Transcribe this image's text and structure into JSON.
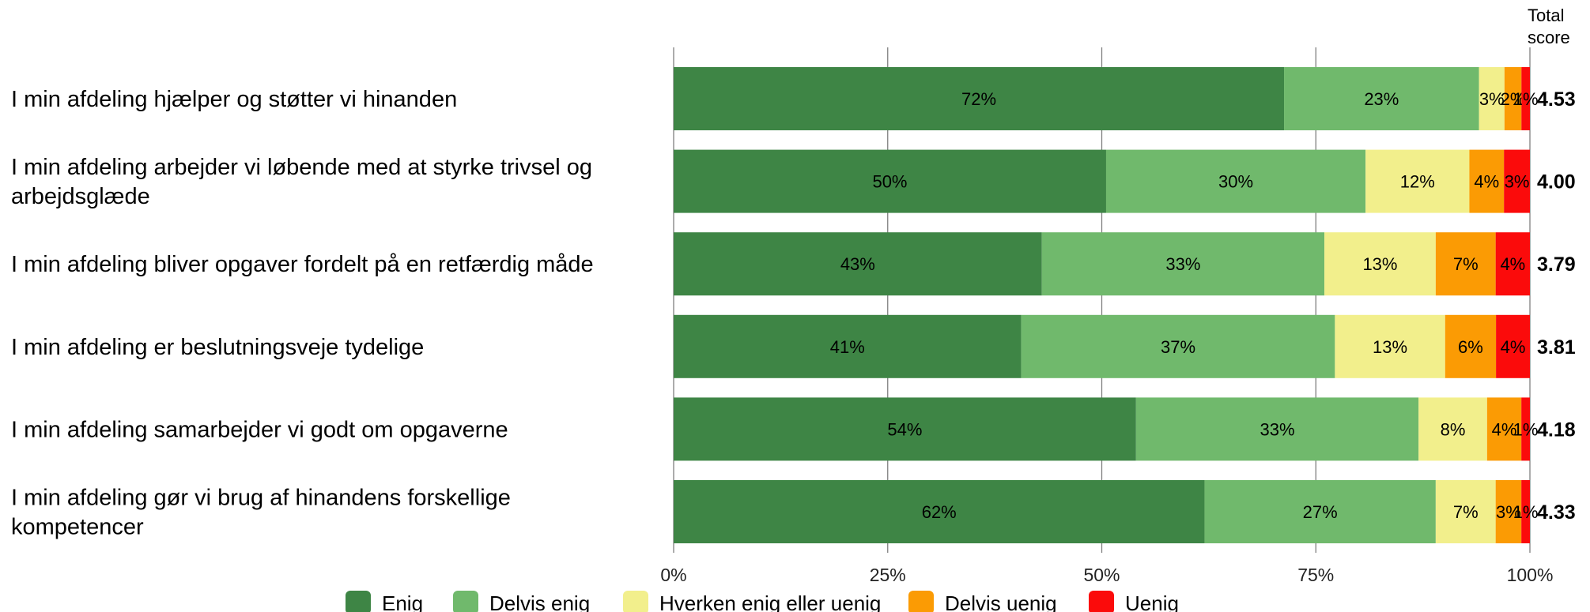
{
  "chart_data": {
    "type": "bar",
    "orientation": "horizontal",
    "stacked": true,
    "categories": [
      [
        "I min afdeling hjælper og støtter vi hinanden"
      ],
      [
        "I min afdeling arbejder vi løbende med at styrke trivsel og",
        "arbejdsglæde"
      ],
      [
        "I min afdeling bliver opgaver fordelt på en retfærdig måde"
      ],
      [
        "I min afdeling er beslutningsveje tydelige"
      ],
      [
        "I min afdeling samarbejder vi godt om opgaverne"
      ],
      [
        "I min afdeling gør vi brug af hinandens forskellige",
        "kompetencer"
      ]
    ],
    "series": [
      {
        "name": "Enig",
        "color": "#3e8545",
        "values": [
          72,
          50,
          43,
          41,
          54,
          62
        ],
        "labels": [
          "72%",
          "50%",
          "43%",
          "41%",
          "54%",
          "62%"
        ]
      },
      {
        "name": "Delvis enig",
        "color": "#70b96c",
        "values": [
          23,
          30,
          33,
          37,
          33,
          27
        ],
        "labels": [
          "23%",
          "30%",
          "33%",
          "37%",
          "33%",
          "27%"
        ]
      },
      {
        "name": "Hverken enig eller uenig",
        "color": "#f2ef8c",
        "values": [
          3,
          12,
          13,
          13,
          8,
          7
        ],
        "labels": [
          "3%",
          "12%",
          "13%",
          "13%",
          "8%",
          "7%"
        ]
      },
      {
        "name": "Delvis uenig",
        "color": "#fb9b04",
        "values": [
          2,
          4,
          7,
          6,
          4,
          3
        ],
        "labels": [
          "2%",
          "4%",
          "7%",
          "6%",
          "4%",
          "3%"
        ]
      },
      {
        "name": "Uenig",
        "color": "#fb0b0b",
        "values": [
          1,
          3,
          4,
          4,
          1,
          1
        ],
        "labels": [
          "1%",
          "3%",
          "4%",
          "4%",
          "1%",
          "1%"
        ]
      }
    ],
    "xlim": [
      0,
      100
    ],
    "x_ticks": [
      "0%",
      "25%",
      "50%",
      "75%",
      "100%"
    ],
    "score_header": [
      "Total",
      "score"
    ],
    "scores": [
      "4.53",
      "4.00",
      "3.79",
      "3.81",
      "4.18",
      "4.33"
    ],
    "grid": true,
    "legend_position": "bottom"
  }
}
